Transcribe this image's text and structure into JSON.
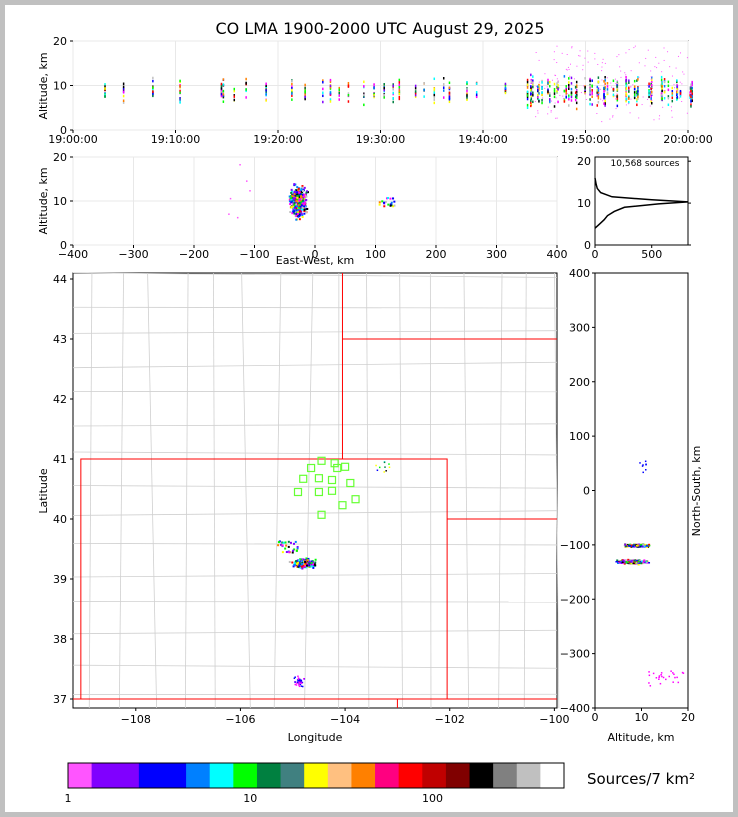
{
  "title": "CO LMA 1900-2000 UTC August 29, 2025",
  "colorbar_label": "Sources/7 km²",
  "colorbar_ticks": [
    "1",
    "10",
    "100"
  ],
  "colorbar_colors": [
    "#ff55ff",
    "#8000ff",
    "#8000ff",
    "#0000ff",
    "#0000ff",
    "#0080ff",
    "#00ffff",
    "#00ff00",
    "#008040",
    "#408080",
    "#ffff00",
    "#ffc080",
    "#ff8000",
    "#ff0080",
    "#ff0000",
    "#c00000",
    "#800000",
    "#000000",
    "#808080",
    "#c0c0c0",
    "#ffffff"
  ],
  "chart_data": [
    {
      "type": "scatter",
      "name": "time-height",
      "xlabel": "",
      "ylabel": "Altitude, km",
      "x_ticks": [
        "19:00:00",
        "19:10:00",
        "19:20:00",
        "19:30:00",
        "19:40:00",
        "19:50:00",
        "20:00:00"
      ],
      "ylim": [
        0,
        20
      ],
      "y_ticks": [
        "0",
        "10",
        "20"
      ],
      "grid": true,
      "bursts_minutes": [
        3.5,
        5,
        8,
        10,
        14,
        15,
        16,
        17,
        19,
        21,
        23,
        24,
        25,
        26,
        27,
        28,
        29,
        30,
        31,
        32,
        33,
        34,
        35,
        36,
        37,
        38,
        39,
        42,
        44.5,
        45,
        46,
        47,
        48,
        49,
        50,
        51,
        52,
        53,
        54,
        55,
        56,
        57,
        58,
        59,
        60
      ]
    },
    {
      "type": "scatter",
      "name": "east-west-altitude",
      "xlabel": "East-West, km",
      "ylabel": "Altitude, km",
      "xlim": [
        -400,
        400
      ],
      "x_ticks": [
        "−400",
        "−300",
        "−200",
        "−100",
        "0",
        "100",
        "200",
        "300",
        "400"
      ],
      "ylim": [
        0,
        20
      ],
      "y_ticks": [
        "0",
        "10",
        "20"
      ],
      "grid": true
    },
    {
      "type": "line",
      "name": "altitude-histogram",
      "annotation": "10,568 sources",
      "x_ticks": [
        "0",
        "500"
      ],
      "y_ticks": [
        "0",
        "10",
        "20"
      ],
      "xlim": [
        0,
        820
      ],
      "ylim": [
        0,
        21
      ],
      "points": [
        [
          0,
          4
        ],
        [
          40,
          5
        ],
        [
          80,
          6
        ],
        [
          110,
          7
        ],
        [
          170,
          8
        ],
        [
          260,
          9
        ],
        [
          560,
          9.8
        ],
        [
          820,
          10.3
        ],
        [
          500,
          10.8
        ],
        [
          150,
          11.5
        ],
        [
          50,
          12.5
        ],
        [
          20,
          13.5
        ],
        [
          10,
          14.5
        ],
        [
          0,
          16
        ]
      ]
    },
    {
      "type": "scatter",
      "name": "plan-view",
      "xlabel": "Longitude",
      "ylabel": "Latitude",
      "xlim": [
        -109.2,
        -99.95
      ],
      "ylim": [
        36.85,
        44.1
      ],
      "x_ticks": [
        "−108",
        "−106",
        "−104",
        "−102",
        "−100"
      ],
      "y_ticks": [
        "37",
        "38",
        "39",
        "40",
        "41",
        "42",
        "43",
        "44"
      ],
      "stations": [
        [
          -104.45,
          40.97
        ],
        [
          -104.65,
          40.85
        ],
        [
          -104.2,
          40.93
        ],
        [
          -104.15,
          40.85
        ],
        [
          -104.0,
          40.87
        ],
        [
          -104.8,
          40.67
        ],
        [
          -104.5,
          40.68
        ],
        [
          -104.25,
          40.65
        ],
        [
          -103.9,
          40.6
        ],
        [
          -104.9,
          40.45
        ],
        [
          -104.5,
          40.45
        ],
        [
          -104.25,
          40.47
        ],
        [
          -103.8,
          40.33
        ],
        [
          -104.05,
          40.23
        ],
        [
          -104.45,
          40.07
        ]
      ]
    },
    {
      "type": "scatter",
      "name": "altitude-north-south",
      "xlabel": "Altitude, km",
      "ylabel": "North-South, km",
      "xlim": [
        0,
        20
      ],
      "x_ticks": [
        "0",
        "10",
        "20"
      ],
      "ylim": [
        -400,
        400
      ],
      "y_ticks": [
        "−400",
        "−300",
        "−200",
        "−100",
        "0",
        "100",
        "200",
        "300",
        "400"
      ]
    }
  ]
}
